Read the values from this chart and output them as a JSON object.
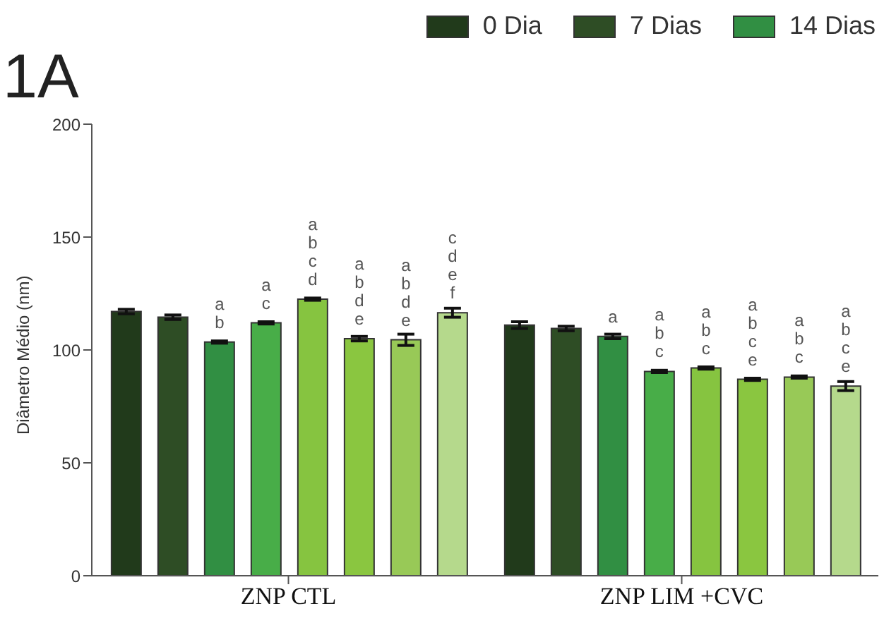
{
  "chart_data": {
    "type": "bar",
    "title": "1A",
    "ylabel": "Diâmetro Médio (nm)",
    "categories": [
      "ZNP CTL",
      "ZNP LIM +CVC"
    ],
    "series": [
      {
        "name": "0 Dia",
        "color": "#213a1b",
        "values": [
          117,
          111
        ],
        "errors": [
          1,
          1.5
        ],
        "value_labels": [
          null,
          null
        ]
      },
      {
        "name": "7 Dias",
        "color": "#2e4d25",
        "values": [
          114.5,
          109.5
        ],
        "errors": [
          1,
          1
        ],
        "value_labels": [
          null,
          null
        ]
      },
      {
        "name": "14 Dias",
        "color": "#318f43",
        "values": [
          103.5,
          106
        ],
        "errors": [
          0.5,
          1
        ],
        "value_labels": [
          "a b",
          "a"
        ]
      },
      {
        "color": "#48ad48",
        "values": [
          112,
          90.5
        ],
        "errors": [
          0.5,
          0.5
        ],
        "value_labels": [
          "a c",
          "a b c"
        ]
      },
      {
        "color": "#86c440",
        "values": [
          122.5,
          92
        ],
        "errors": [
          0.5,
          0.5
        ],
        "value_labels": [
          "a b c d",
          "a b c"
        ]
      },
      {
        "color": "#8ac640",
        "values": [
          105,
          87
        ],
        "errors": [
          1,
          0.5
        ],
        "value_labels": [
          "a b d e",
          "a b c e"
        ]
      },
      {
        "color": "#98c957",
        "values": [
          104.5,
          88
        ],
        "errors": [
          2.5,
          0.5
        ],
        "value_labels": [
          "a b d e",
          "a b c"
        ]
      },
      {
        "color": "#b5d98c",
        "values": [
          116.5,
          84
        ],
        "errors": [
          2,
          2
        ],
        "value_labels": [
          "c d e f",
          "a b c e"
        ]
      }
    ],
    "ylim": [
      0,
      200
    ],
    "yticks": [
      0,
      50,
      100,
      150,
      200
    ],
    "legend": "top right"
  }
}
